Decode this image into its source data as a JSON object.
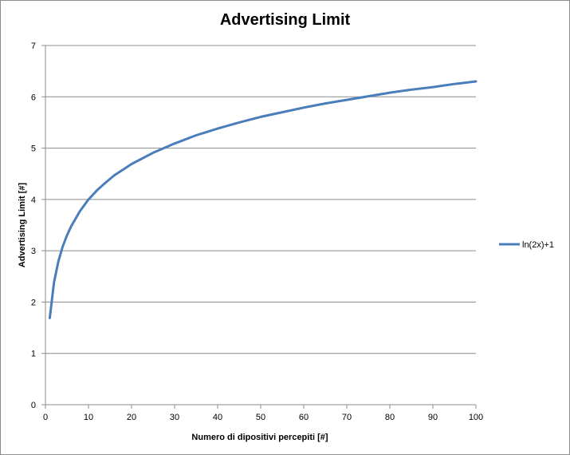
{
  "chart_data": {
    "type": "line",
    "title": "Advertising Limit",
    "xlabel": "Numero di dipositivi  percepiti [#]",
    "ylabel": "Advertising Limit [#]",
    "xlim": [
      0,
      100
    ],
    "ylim": [
      0,
      7
    ],
    "xticks": [
      0,
      10,
      20,
      30,
      40,
      50,
      60,
      70,
      80,
      90,
      100
    ],
    "yticks": [
      0,
      1,
      2,
      3,
      4,
      5,
      6,
      7
    ],
    "grid": "horizontal",
    "legend_position": "right",
    "series": [
      {
        "name": "ln(2x)+1",
        "color": "#4a7ebb",
        "x": [
          1,
          2,
          3,
          4,
          5,
          6,
          8,
          10,
          12,
          14,
          16,
          18,
          20,
          25,
          30,
          35,
          40,
          45,
          50,
          55,
          60,
          65,
          70,
          75,
          80,
          85,
          90,
          95,
          100
        ],
        "y": [
          1.69,
          2.39,
          2.79,
          3.08,
          3.3,
          3.48,
          3.77,
          4.0,
          4.18,
          4.33,
          4.47,
          4.58,
          4.69,
          4.91,
          5.09,
          5.25,
          5.38,
          5.5,
          5.61,
          5.7,
          5.79,
          5.87,
          5.94,
          6.01,
          6.08,
          6.14,
          6.19,
          6.25,
          6.3
        ]
      }
    ]
  }
}
